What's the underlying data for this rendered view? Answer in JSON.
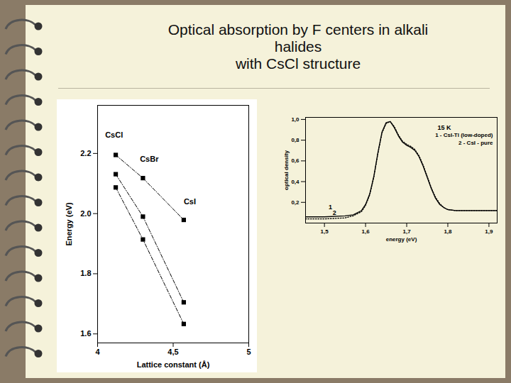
{
  "title": "Optical absorption by F centers in alkali\nhalides\nwith CsCl structure",
  "chart_data": [
    {
      "type": "line",
      "x_label": "Lattice constant (Å)",
      "y_label": "Energy (eV)",
      "xlim": [
        4,
        5
      ],
      "xticks": [
        4,
        {
          "value": 4.5,
          "label": "4,5"
        },
        5
      ],
      "ylim": [
        1.57,
        2.36
      ],
      "yticks": [
        1.6,
        1.8,
        {
          "value": 2,
          "label": "2.0"
        },
        2.2
      ],
      "grid": false,
      "marker": "square",
      "line_style": "dashed",
      "x": [
        4.12,
        4.3,
        4.57
      ],
      "series": [
        {
          "color": "#000000",
          "values": [
            2.195,
            2.118,
            1.979
          ]
        },
        {
          "color": "#000000",
          "values": [
            2.131,
            1.99,
            1.705
          ]
        },
        {
          "color": "#000000",
          "values": [
            2.087,
            1.914,
            1.633
          ]
        }
      ],
      "annotations": [
        {
          "text": "CsCl",
          "x": 4.05,
          "y": 2.26
        },
        {
          "text": "CsBr",
          "x": 4.28,
          "y": 2.18
        },
        {
          "text": "CsI",
          "x": 4.57,
          "y": 2.04
        }
      ]
    },
    {
      "type": "line",
      "x_label": "energy (eV)",
      "y_label": "optical density",
      "xlim": [
        1.454,
        1.92
      ],
      "xticks": [
        {
          "value": 1.5,
          "label": "1,5"
        },
        {
          "value": 1.6,
          "label": "1,6"
        },
        {
          "value": 1.7,
          "label": "1,7"
        },
        {
          "value": 1.8,
          "label": "1,8"
        },
        {
          "value": 1.9,
          "label": "1,9"
        }
      ],
      "ylim": [
        0,
        1.02
      ],
      "yticks": [
        {
          "value": 0.2,
          "label": "0,2"
        },
        {
          "value": 0.4,
          "label": "0,4"
        },
        {
          "value": 0.6,
          "label": "0,6"
        },
        {
          "value": 0.8,
          "label": "0,8"
        },
        {
          "value": 1,
          "label": "1,0"
        }
      ],
      "grid": false,
      "legend": "top-right",
      "x": [
        1.454,
        1.5,
        1.55,
        1.57,
        1.59,
        1.6,
        1.61,
        1.62,
        1.63,
        1.64,
        1.65,
        1.66,
        1.67,
        1.68,
        1.69,
        1.7,
        1.71,
        1.72,
        1.73,
        1.74,
        1.75,
        1.76,
        1.77,
        1.78,
        1.79,
        1.8,
        1.82,
        1.85,
        1.9,
        1.92
      ],
      "series": [
        {
          "name": "1 - CsI-Tl (low-doped)",
          "color": "#000000",
          "line_style": "solid",
          "values": [
            0.06,
            0.06,
            0.07,
            0.08,
            0.12,
            0.18,
            0.28,
            0.45,
            0.68,
            0.88,
            0.97,
            0.98,
            0.92,
            0.84,
            0.78,
            0.75,
            0.73,
            0.7,
            0.64,
            0.55,
            0.44,
            0.33,
            0.24,
            0.18,
            0.15,
            0.13,
            0.12,
            0.12,
            0.12,
            0.12
          ]
        },
        {
          "name": "2 - CsI - pure",
          "color": "#000000",
          "line_style": "dotted",
          "values": [
            0.04,
            0.04,
            0.05,
            0.07,
            0.11,
            0.17,
            0.27,
            0.44,
            0.67,
            0.87,
            0.96,
            0.98,
            0.93,
            0.85,
            0.79,
            0.76,
            0.74,
            0.71,
            0.65,
            0.56,
            0.45,
            0.34,
            0.25,
            0.19,
            0.15,
            0.13,
            0.12,
            0.12,
            0.12,
            0.12
          ]
        }
      ],
      "annotations": [
        {
          "text": "15 K",
          "x": 1.775,
          "y": 0.92
        },
        {
          "text": "1",
          "x": 1.51,
          "y": 0.155
        },
        {
          "text": "2",
          "x": 1.52,
          "y": 0.1
        }
      ]
    }
  ]
}
